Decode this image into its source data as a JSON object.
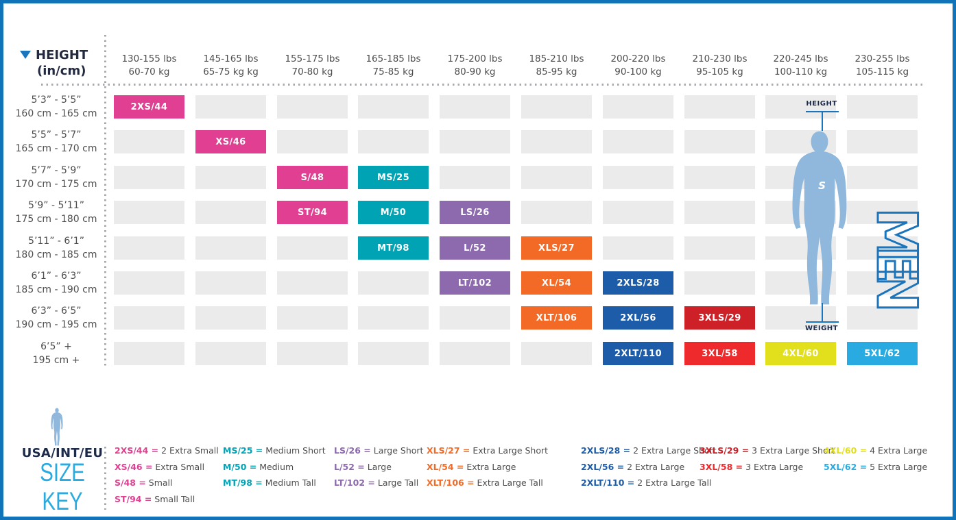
{
  "colors": {
    "pink": "#E03F92",
    "teal": "#00A3B4",
    "purple": "#8D69AE",
    "orange": "#F26A26",
    "blue": "#1D5CA9",
    "red_dark": "#CE2027",
    "red": "#EE2A2C",
    "yellow": "#E2DF1C",
    "light_blue": "#29ABE2",
    "empty_cell": "#EBEBEB",
    "accent_blue": "#1B75BC",
    "figure_blue": "#8FB8DC",
    "border_blue": "#1274B8"
  },
  "table": {
    "title_line1": "HEIGHT",
    "title_line2": "(in/cm)",
    "weight_columns": [
      {
        "lbs": "130-155 lbs",
        "kg": "60-70 kg"
      },
      {
        "lbs": "145-165 lbs",
        "kg": "65-75 kg kg"
      },
      {
        "lbs": "155-175 lbs",
        "kg": "70-80 kg"
      },
      {
        "lbs": "165-185 lbs",
        "kg": "75-85 kg"
      },
      {
        "lbs": "175-200 lbs",
        "kg": "80-90 kg"
      },
      {
        "lbs": "185-210 lbs",
        "kg": "85-95 kg"
      },
      {
        "lbs": "200-220 lbs",
        "kg": "90-100 kg"
      },
      {
        "lbs": "210-230 lbs",
        "kg": "95-105 kg"
      },
      {
        "lbs": "220-245 lbs",
        "kg": "100-110 kg"
      },
      {
        "lbs": "230-255 lbs",
        "kg": "105-115 kg"
      }
    ],
    "height_rows": [
      {
        "imperial": "5’3” - 5’5”",
        "metric": "160 cm - 165 cm"
      },
      {
        "imperial": "5’5” - 5’7”",
        "metric": "165 cm - 170 cm"
      },
      {
        "imperial": "5’7” - 5’9”",
        "metric": "170 cm - 175 cm"
      },
      {
        "imperial": "5’9” - 5’11”",
        "metric": "175 cm - 180 cm"
      },
      {
        "imperial": "5’11” - 6’1”",
        "metric": "180 cm - 185 cm"
      },
      {
        "imperial": "6’1” - 6’3”",
        "metric": "185 cm - 190 cm"
      },
      {
        "imperial": "6’3” - 6’5”",
        "metric": "190 cm - 195 cm"
      },
      {
        "imperial": "6’5” +",
        "metric": "195 cm +"
      }
    ],
    "cells": [
      {
        "row": 0,
        "col": 0,
        "label": "2XS/44",
        "color": "pink"
      },
      {
        "row": 1,
        "col": 1,
        "label": "XS/46",
        "color": "pink"
      },
      {
        "row": 2,
        "col": 2,
        "label": "S/48",
        "color": "pink"
      },
      {
        "row": 2,
        "col": 3,
        "label": "MS/25",
        "color": "teal"
      },
      {
        "row": 3,
        "col": 2,
        "label": "ST/94",
        "color": "pink"
      },
      {
        "row": 3,
        "col": 3,
        "label": "M/50",
        "color": "teal"
      },
      {
        "row": 3,
        "col": 4,
        "label": "LS/26",
        "color": "purple"
      },
      {
        "row": 4,
        "col": 3,
        "label": "MT/98",
        "color": "teal"
      },
      {
        "row": 4,
        "col": 4,
        "label": "L/52",
        "color": "purple"
      },
      {
        "row": 4,
        "col": 5,
        "label": "XLS/27",
        "color": "orange"
      },
      {
        "row": 5,
        "col": 4,
        "label": "LT/102",
        "color": "purple"
      },
      {
        "row": 5,
        "col": 5,
        "label": "XL/54",
        "color": "orange"
      },
      {
        "row": 5,
        "col": 6,
        "label": "2XLS/28",
        "color": "blue"
      },
      {
        "row": 6,
        "col": 5,
        "label": "XLT/106",
        "color": "orange"
      },
      {
        "row": 6,
        "col": 6,
        "label": "2XL/56",
        "color": "blue"
      },
      {
        "row": 6,
        "col": 7,
        "label": "3XLS/29",
        "color": "red_dark"
      },
      {
        "row": 7,
        "col": 6,
        "label": "2XLT/110",
        "color": "blue"
      },
      {
        "row": 7,
        "col": 7,
        "label": "3XL/58",
        "color": "red"
      },
      {
        "row": 7,
        "col": 8,
        "label": "4XL/60",
        "color": "yellow"
      },
      {
        "row": 7,
        "col": 9,
        "label": "5XL/62",
        "color": "light_blue"
      }
    ]
  },
  "figure": {
    "height_label": "HEIGHT",
    "weight_label": "WEIGHT",
    "gender_label": "MEN",
    "logo": "S"
  },
  "size_key": {
    "region_label": "USA/INT/EU",
    "title": "SIZE KEY",
    "columns": [
      {
        "entries": [
          {
            "code": "2XS/44",
            "name": "2 Extra Small",
            "color": "pink"
          },
          {
            "code": "XS/46",
            "name": "Extra Small",
            "color": "pink"
          },
          {
            "code": "S/48",
            "name": "Small",
            "color": "pink"
          },
          {
            "code": "ST/94",
            "name": "Small Tall",
            "color": "pink"
          }
        ]
      },
      {
        "entries": [
          {
            "code": "MS/25",
            "name": "Medium Short",
            "color": "teal"
          },
          {
            "code": "M/50",
            "name": "Medium",
            "color": "teal"
          },
          {
            "code": "MT/98",
            "name": "Medium Tall",
            "color": "teal"
          }
        ]
      },
      {
        "entries": [
          {
            "code": "LS/26",
            "name": "Large Short",
            "color": "purple"
          },
          {
            "code": "L/52",
            "name": "Large",
            "color": "purple"
          },
          {
            "code": "LT/102",
            "name": "Large Tall",
            "color": "purple"
          }
        ]
      },
      {
        "entries": [
          {
            "code": "XLS/27",
            "name": "Extra Large Short",
            "color": "orange"
          },
          {
            "code": "XL/54",
            "name": "Extra Large",
            "color": "orange"
          },
          {
            "code": "XLT/106",
            "name": "Extra Large Tall",
            "color": "orange"
          }
        ]
      },
      {
        "entries": [
          {
            "code": "2XLS/28",
            "name": "2 Extra Large Short",
            "color": "blue"
          },
          {
            "code": "2XL/56",
            "name": "2 Extra Large",
            "color": "blue"
          },
          {
            "code": "2XLT/110",
            "name": "2 Extra Large Tall",
            "color": "blue"
          }
        ]
      },
      {
        "entries": [
          {
            "code": "3XLS/29",
            "name": "3 Extra Large Short",
            "color": "red_dark"
          },
          {
            "code": "3XL/58",
            "name": "3 Extra Large",
            "color": "red"
          }
        ]
      },
      {
        "entries": [
          {
            "code": "4XL/60",
            "name": "4 Extra Large",
            "color": "yellow"
          },
          {
            "code": "5XL/62",
            "name": "5 Extra Large",
            "color": "light_blue"
          }
        ]
      }
    ]
  }
}
